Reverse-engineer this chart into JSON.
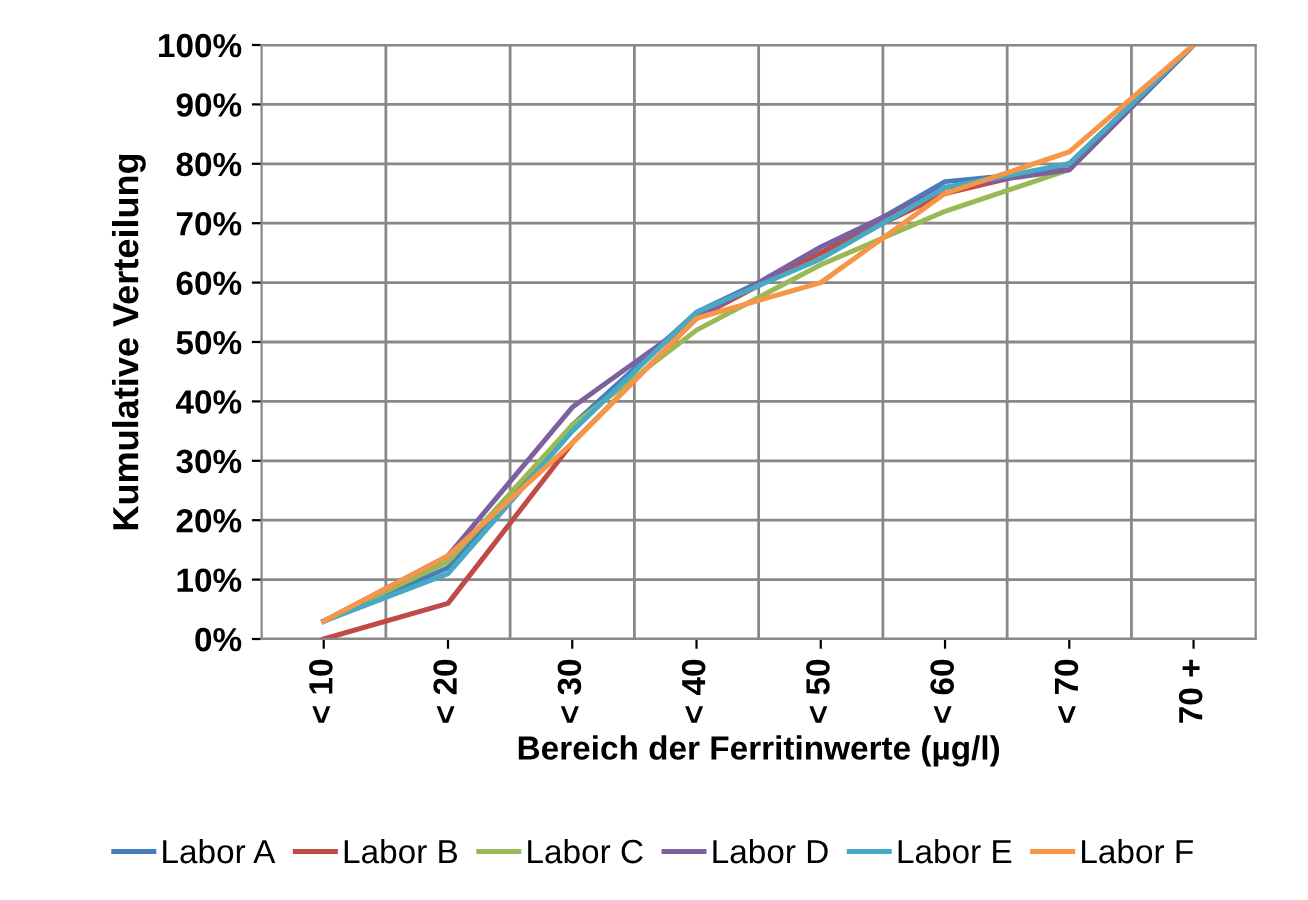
{
  "chart_data": {
    "type": "line",
    "xlabel": "Bereich der Ferritinwerte (µg/l)",
    "ylabel": "Kumulative Verteilung",
    "categories": [
      "< 10",
      "< 20",
      "< 30",
      "< 40",
      "< 50",
      "< 60",
      "< 70",
      "70 +"
    ],
    "series": [
      {
        "name": "Labor A",
        "color": "#4a7ebb",
        "values": [
          3,
          12,
          36,
          55,
          65,
          77,
          79,
          100
        ]
      },
      {
        "name": "Labor B",
        "color": "#be4b48",
        "values": [
          0,
          6,
          33,
          54,
          65,
          75,
          80,
          100
        ]
      },
      {
        "name": "Labor C",
        "color": "#98b954",
        "values": [
          3,
          13,
          36,
          52,
          63,
          72,
          79,
          100
        ]
      },
      {
        "name": "Labor D",
        "color": "#7d60a0",
        "values": [
          3,
          14,
          39,
          54,
          66,
          76,
          79,
          100
        ]
      },
      {
        "name": "Labor E",
        "color": "#46aac5",
        "values": [
          3,
          11,
          35,
          55,
          64,
          76,
          80,
          100
        ]
      },
      {
        "name": "Labor F",
        "color": "#f79646",
        "values": [
          3,
          14,
          33,
          54,
          60,
          75,
          82,
          100
        ]
      }
    ],
    "ylim": [
      0,
      100
    ],
    "yticks": [
      {
        "value": 0,
        "label": "0%"
      },
      {
        "value": 10,
        "label": "10%"
      },
      {
        "value": 20,
        "label": "20%"
      },
      {
        "value": 30,
        "label": "30%"
      },
      {
        "value": 40,
        "label": "40%"
      },
      {
        "value": 50,
        "label": "50%"
      },
      {
        "value": 60,
        "label": "60%"
      },
      {
        "value": 70,
        "label": "70%"
      },
      {
        "value": 80,
        "label": "80%"
      },
      {
        "value": 90,
        "label": "90%"
      },
      {
        "value": 100,
        "label": "100%"
      }
    ],
    "grid": true,
    "legend": "bottom",
    "marker": "none",
    "line_style": "solid"
  }
}
